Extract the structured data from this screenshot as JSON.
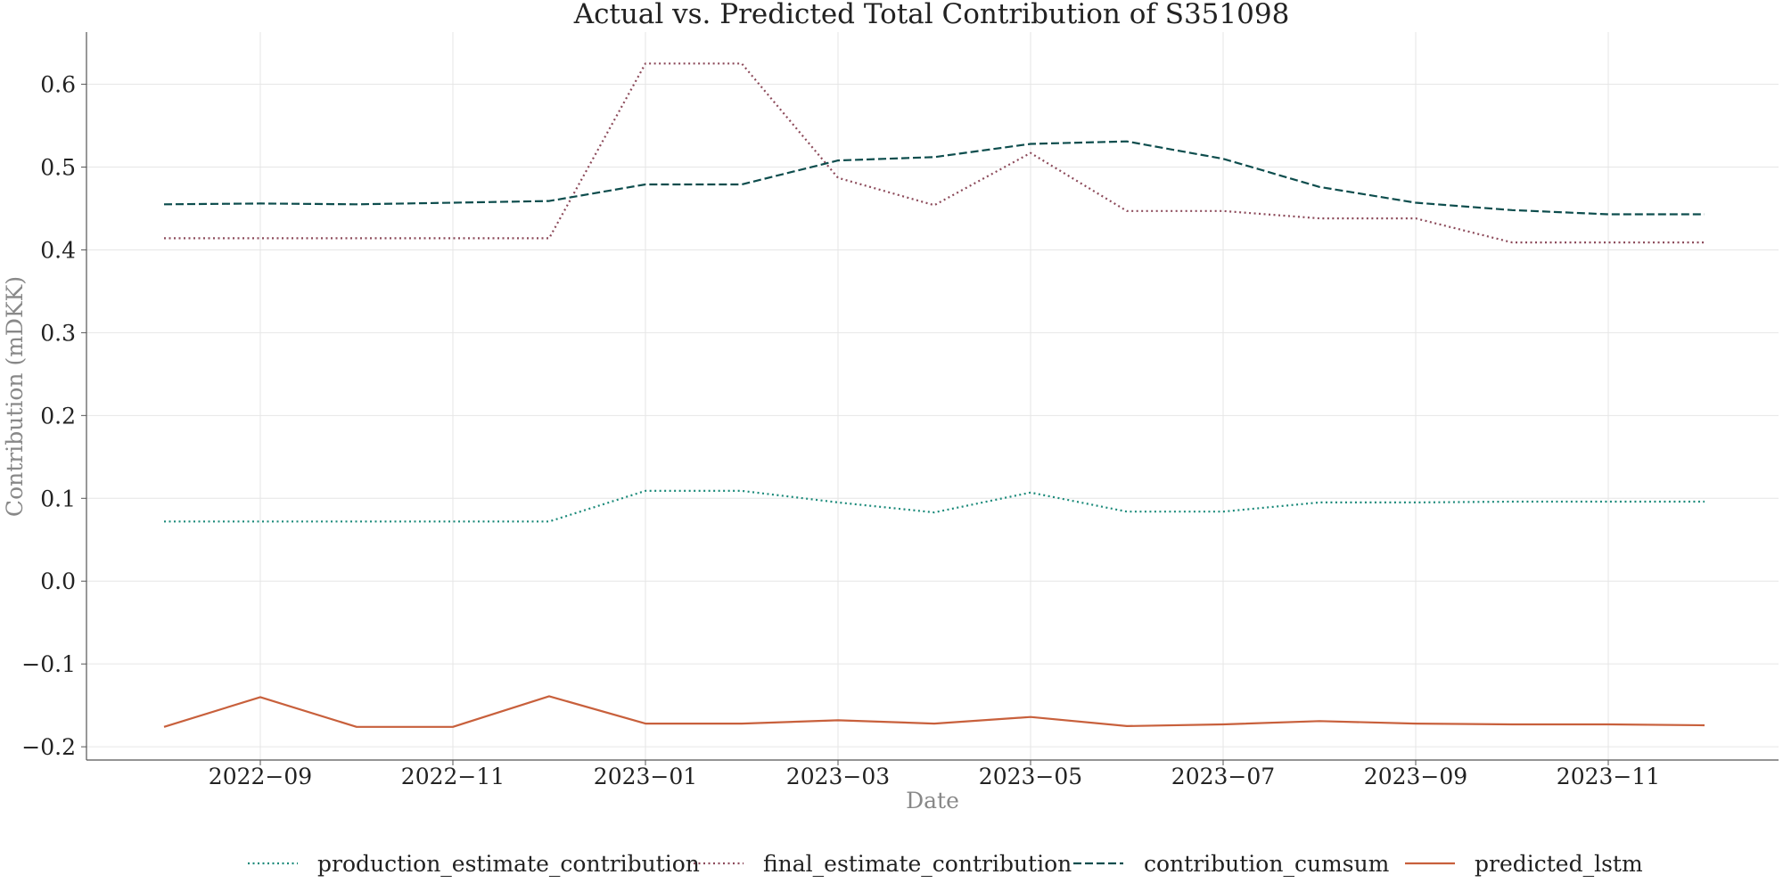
{
  "chart_data": {
    "type": "line",
    "title": "Actual vs. Predicted Total Contribution of S351098",
    "xlabel": "Date",
    "ylabel": "Contribution (mDKK)",
    "x": [
      "2022-08",
      "2022-09",
      "2022-10",
      "2022-11",
      "2022-12",
      "2023-01",
      "2023-02",
      "2023-03",
      "2023-04",
      "2023-05",
      "2023-06",
      "2023-07",
      "2023-08",
      "2023-09",
      "2023-10",
      "2023-11",
      "2023-12"
    ],
    "x_ticks": [
      "2022−09",
      "2022−11",
      "2023−01",
      "2023−03",
      "2023−05",
      "2023−07",
      "2023−09",
      "2023−11"
    ],
    "x_tick_dates": [
      "2022-09",
      "2022-11",
      "2023-01",
      "2023-03",
      "2023-05",
      "2023-07",
      "2023-09",
      "2023-11"
    ],
    "y_ticks": [
      "−0.2",
      "−0.1",
      "0.0",
      "0.1",
      "0.2",
      "0.3",
      "0.4",
      "0.5",
      "0.6"
    ],
    "y_tick_values": [
      -0.2,
      -0.1,
      0.0,
      0.1,
      0.2,
      0.3,
      0.4,
      0.5,
      0.6
    ],
    "ylim": [
      -0.216,
      0.663
    ],
    "grid": true,
    "legend_position": "bottom",
    "series": [
      {
        "name": "production_estimate_contribution",
        "color": "#1b8a7a",
        "style": "dotted",
        "values": [
          0.072,
          0.072,
          0.072,
          0.072,
          0.072,
          0.109,
          0.109,
          0.095,
          0.083,
          0.107,
          0.084,
          0.084,
          0.095,
          0.095,
          0.096,
          0.096,
          0.096
        ]
      },
      {
        "name": "final_estimate_contribution",
        "color": "#8c4a5a",
        "style": "dotted",
        "values": [
          0.414,
          0.414,
          0.414,
          0.414,
          0.414,
          0.625,
          0.625,
          0.487,
          0.454,
          0.517,
          0.447,
          0.447,
          0.438,
          0.438,
          0.409,
          0.409,
          0.409
        ]
      },
      {
        "name": "contribution_cumsum",
        "color": "#0d4d4d",
        "style": "dashed",
        "values": [
          0.455,
          0.456,
          0.455,
          0.457,
          0.459,
          0.479,
          0.479,
          0.508,
          0.512,
          0.528,
          0.531,
          0.51,
          0.476,
          0.457,
          0.448,
          0.443,
          0.443
        ]
      },
      {
        "name": "predicted_lstm",
        "color": "#c8603c",
        "style": "solid",
        "values": [
          -0.176,
          -0.14,
          -0.176,
          -0.176,
          -0.139,
          -0.172,
          -0.172,
          -0.168,
          -0.172,
          -0.164,
          -0.175,
          -0.173,
          -0.169,
          -0.172,
          -0.173,
          -0.173,
          -0.174
        ]
      }
    ]
  }
}
